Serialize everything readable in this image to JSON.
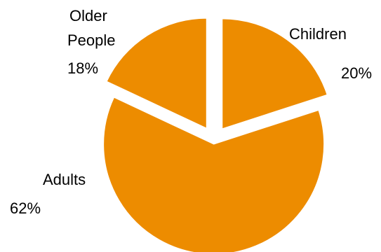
{
  "chart_data": {
    "type": "pie",
    "exploded": true,
    "color": "#ED8C00",
    "slices": [
      {
        "label": "Children",
        "value": 20,
        "value_label": "20%"
      },
      {
        "label": "Adults",
        "value": 62,
        "value_label": "62%"
      },
      {
        "label": "Older People",
        "label_lines": [
          "Older",
          "People"
        ],
        "value": 18,
        "value_label": "18%"
      }
    ]
  }
}
